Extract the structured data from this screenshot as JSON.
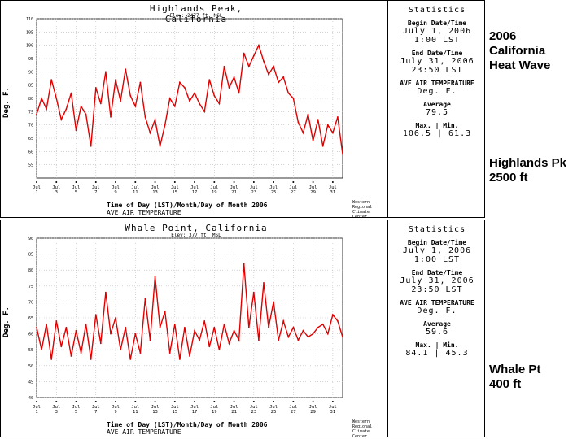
{
  "captions": {
    "heat_wave": "2006\nCalifornia\nHeat Wave",
    "highlands": "Highlands Pk\n2500 ft",
    "whale": "Whale Pt\n400 ft"
  },
  "chart_data": [
    {
      "type": "line",
      "title": "Highlands Peak, California",
      "subtitle": "Elev: 2477 ft. MSL",
      "xlabel": "Time of Day (LST)/Month/Day of Month 2006",
      "xlabel_sub": "AVE AIR TEMPERATURE",
      "ylabel": "Deg. F.",
      "credit": "Western Regional Climate Center",
      "ylim": [
        50,
        110
      ],
      "yticks": [
        110,
        105,
        100,
        95,
        90,
        85,
        80,
        75,
        70,
        65,
        60,
        55
      ],
      "xlim": [
        1,
        32
      ],
      "xticks": [
        {
          "x": 1,
          "label": "Jul 1"
        },
        {
          "x": 3,
          "label": "Jul 3"
        },
        {
          "x": 5,
          "label": "Jul 5"
        },
        {
          "x": 7,
          "label": "Jul 7"
        },
        {
          "x": 9,
          "label": "Jul 9"
        },
        {
          "x": 11,
          "label": "Jul 11"
        },
        {
          "x": 13,
          "label": "Jul 13"
        },
        {
          "x": 15,
          "label": "Jul 15"
        },
        {
          "x": 17,
          "label": "Jul 17"
        },
        {
          "x": 19,
          "label": "Jul 19"
        },
        {
          "x": 21,
          "label": "Jul 21"
        },
        {
          "x": 23,
          "label": "Jul 23"
        },
        {
          "x": 25,
          "label": "Jul 25"
        },
        {
          "x": 27,
          "label": "Jul 27"
        },
        {
          "x": 29,
          "label": "Jul 29"
        },
        {
          "x": 31,
          "label": "Jul 31"
        }
      ],
      "grid": true,
      "series": [
        {
          "color": "#e00000",
          "x": [
            1,
            1.5,
            2,
            2.5,
            3,
            3.5,
            4,
            4.5,
            5,
            5.5,
            6,
            6.5,
            7,
            7.5,
            8,
            8.5,
            9,
            9.5,
            10,
            10.5,
            11,
            11.5,
            12,
            12.5,
            13,
            13.5,
            14,
            14.5,
            15,
            15.5,
            16,
            16.5,
            17,
            17.5,
            18,
            18.5,
            19,
            19.5,
            20,
            20.5,
            21,
            21.5,
            22,
            22.5,
            23,
            23.5,
            24,
            24.5,
            25,
            25.5,
            26,
            26.5,
            27,
            27.5,
            28,
            28.5,
            29,
            29.5,
            30,
            30.5,
            31,
            31.5,
            32
          ],
          "values": [
            74,
            80,
            76,
            87,
            80,
            72,
            76,
            82,
            68,
            77,
            74,
            62,
            84,
            78,
            90,
            73,
            87,
            79,
            91,
            81,
            77,
            86,
            73,
            67,
            72,
            62,
            70,
            80,
            77,
            86,
            84,
            79,
            82,
            78,
            75,
            87,
            81,
            78,
            92,
            84,
            88,
            82,
            97,
            92,
            96,
            100,
            94,
            89,
            92,
            86,
            88,
            82,
            80,
            71,
            67,
            74,
            64,
            72,
            62,
            70,
            67,
            73,
            59
          ]
        }
      ],
      "stats": {
        "heading": "Statistics",
        "begin_label": "Begin Date/Time",
        "begin_date": "July 1, 2006",
        "begin_time": "1:00 LST",
        "end_label": "End Date/Time",
        "end_date": "July 31, 2006",
        "end_time": "23:50 LST",
        "measure": "AVE AIR TEMPERATURE",
        "units": "Deg. F.",
        "avg_label": "Average",
        "avg_value": "79.5",
        "minmax_label": "Max. | Min.",
        "minmax_value": "106.5 | 61.3"
      }
    },
    {
      "type": "line",
      "title": "Whale Point, California",
      "subtitle": "Elev: 377 ft. MSL",
      "xlabel": "Time of Day (LST)/Month/Day of Month 2006",
      "xlabel_sub": "AVE AIR TEMPERATURE",
      "ylabel": "Deg. F.",
      "credit": "Western Regional Climate Center",
      "ylim": [
        40,
        90
      ],
      "yticks": [
        90,
        85,
        80,
        75,
        70,
        65,
        60,
        55,
        50,
        45,
        40
      ],
      "xlim": [
        1,
        32
      ],
      "xticks": [
        {
          "x": 1,
          "label": "Jul 1"
        },
        {
          "x": 3,
          "label": "Jul 3"
        },
        {
          "x": 5,
          "label": "Jul 5"
        },
        {
          "x": 7,
          "label": "Jul 7"
        },
        {
          "x": 9,
          "label": "Jul 9"
        },
        {
          "x": 11,
          "label": "Jul 11"
        },
        {
          "x": 13,
          "label": "Jul 13"
        },
        {
          "x": 15,
          "label": "Jul 15"
        },
        {
          "x": 17,
          "label": "Jul 17"
        },
        {
          "x": 19,
          "label": "Jul 19"
        },
        {
          "x": 21,
          "label": "Jul 21"
        },
        {
          "x": 23,
          "label": "Jul 23"
        },
        {
          "x": 25,
          "label": "Jul 25"
        },
        {
          "x": 27,
          "label": "Jul 27"
        },
        {
          "x": 29,
          "label": "Jul 29"
        },
        {
          "x": 31,
          "label": "Jul 31"
        }
      ],
      "grid": true,
      "series": [
        {
          "color": "#e00000",
          "x": [
            1,
            1.5,
            2,
            2.5,
            3,
            3.5,
            4,
            4.5,
            5,
            5.5,
            6,
            6.5,
            7,
            7.5,
            8,
            8.5,
            9,
            9.5,
            10,
            10.5,
            11,
            11.5,
            12,
            12.5,
            13,
            13.5,
            14,
            14.5,
            15,
            15.5,
            16,
            16.5,
            17,
            17.5,
            18,
            18.5,
            19,
            19.5,
            20,
            20.5,
            21,
            21.5,
            22,
            22.5,
            23,
            23.5,
            24,
            24.5,
            25,
            25.5,
            26,
            26.5,
            27,
            27.5,
            28,
            28.5,
            29,
            29.5,
            30,
            30.5,
            31,
            31.5,
            32
          ],
          "values": [
            62,
            55,
            63,
            52,
            64,
            56,
            62,
            53,
            61,
            54,
            63,
            52,
            66,
            57,
            73,
            60,
            65,
            55,
            62,
            52,
            60,
            54,
            71,
            58,
            78,
            62,
            67,
            54,
            63,
            52,
            62,
            53,
            61,
            58,
            64,
            56,
            62,
            55,
            63,
            57,
            61,
            58,
            82,
            62,
            73,
            58,
            76,
            62,
            70,
            58,
            64,
            59,
            62,
            58,
            61,
            59,
            60,
            62,
            63,
            60,
            66,
            64,
            59
          ]
        }
      ],
      "stats": {
        "heading": "Statistics",
        "begin_label": "Begin Date/Time",
        "begin_date": "July 1, 2006",
        "begin_time": "1:00 LST",
        "end_label": "End Date/Time",
        "end_date": "July 31, 2006",
        "end_time": "23:50 LST",
        "measure": "AVE AIR TEMPERATURE",
        "units": "Deg. F.",
        "avg_label": "Average",
        "avg_value": "59.6",
        "minmax_label": "Max. | Min.",
        "minmax_value": "84.1 | 45.3"
      }
    }
  ]
}
